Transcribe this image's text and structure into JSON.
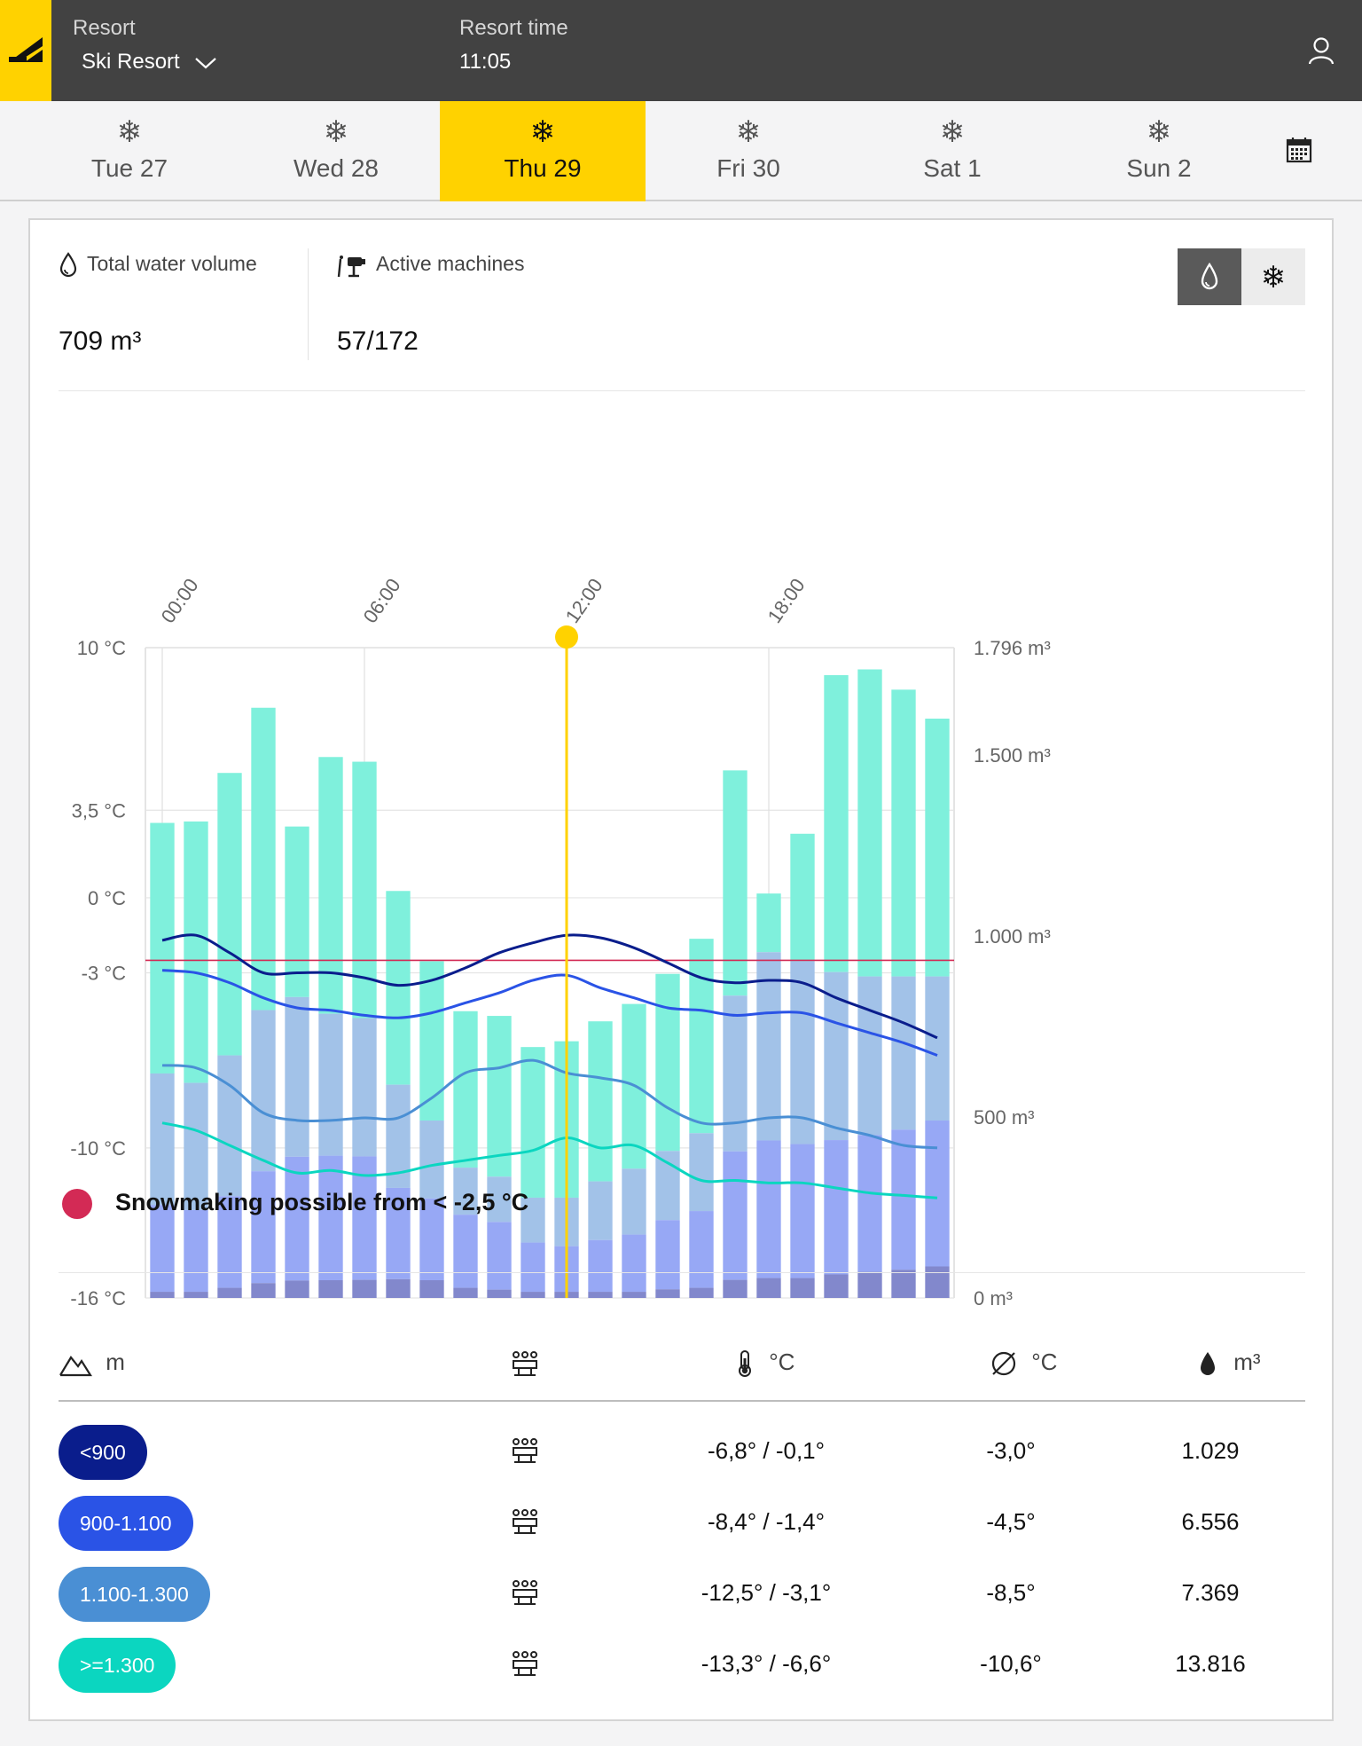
{
  "header": {
    "resort_label": "Resort",
    "resort_value": "Ski Resort",
    "time_label": "Resort time",
    "time_value": "11:05"
  },
  "days": [
    {
      "label": "Tue 27",
      "active": false
    },
    {
      "label": "Wed 28",
      "active": false
    },
    {
      "label": "Thu 29",
      "active": true
    },
    {
      "label": "Fri 30",
      "active": false
    },
    {
      "label": "Sat 1",
      "active": false
    },
    {
      "label": "Sun 2",
      "active": false
    }
  ],
  "stats": {
    "water_label": "Total water volume",
    "water_value": "709 m³",
    "machines_label": "Active machines",
    "machines_value": "57/172"
  },
  "toggle": {
    "active": "water-drop-icon",
    "inactive": "snowflake-icon"
  },
  "colors": {
    "accent": "#ffd200",
    "threshold": "#d32a55",
    "bar_top": "#7ff0dc",
    "bar_mid": "#a2c2e8",
    "bar_low": "#97a8f5",
    "bar_base": "#8288cc",
    "band_lt900": "#0a1d8c",
    "band_900_1100": "#2a53e6",
    "band_1100_1300": "#4a8fd4",
    "band_ge1300": "#0bd6c0"
  },
  "chart_data": {
    "type": "bar",
    "x_ticks": [
      "00:00",
      "06:00",
      "12:00",
      "18:00"
    ],
    "left_axis": {
      "ticks": [
        "10 °C",
        "3,5 °C",
        "0 °C",
        "-3 °C",
        "-10 °C",
        "-16 °C"
      ],
      "values": [
        10,
        3.5,
        0,
        -3,
        -10,
        -16
      ],
      "range": [
        -16,
        10
      ]
    },
    "right_axis": {
      "ticks": [
        "1.796 m³",
        "1.500 m³",
        "1.000 m³",
        "500 m³",
        "0 m³"
      ],
      "values": [
        1796,
        1500,
        1000,
        500,
        0
      ],
      "range": [
        0,
        1796
      ]
    },
    "current_hour_index": 12,
    "threshold_celsius": -2.5,
    "bars_m3": {
      "total": [
        1312,
        1316,
        1450,
        1630,
        1302,
        1494,
        1481,
        1124,
        930,
        792,
        779,
        693,
        709,
        764,
        812,
        895,
        992,
        1457,
        1117,
        1282,
        1720,
        1736,
        1680,
        1600
      ],
      "mid": [
        620,
        594,
        670,
        795,
        831,
        785,
        773,
        589,
        490,
        360,
        335,
        277,
        277,
        322,
        357,
        406,
        455,
        835,
        955,
        930,
        900,
        888,
        888,
        888
      ],
      "low": [
        257,
        243,
        281,
        350,
        390,
        393,
        391,
        304,
        275,
        230,
        210,
        153,
        143,
        160,
        175,
        215,
        240,
        405,
        435,
        425,
        436,
        450,
        465,
        490
      ],
      "base": [
        17,
        17,
        28,
        41,
        48,
        49,
        50,
        52,
        49,
        28,
        23,
        17,
        17,
        17,
        17,
        24,
        28,
        50,
        55,
        55,
        65,
        72,
        78,
        87
      ]
    },
    "series_celsius": [
      {
        "band": "<900",
        "values": [
          -1.7,
          -1.5,
          -2.2,
          -3.0,
          -3.0,
          -3.0,
          -3.2,
          -3.5,
          -3.3,
          -2.8,
          -2.2,
          -1.8,
          -1.5,
          -1.6,
          -2.0,
          -2.6,
          -3.2,
          -3.4,
          -3.3,
          -3.4,
          -4.0,
          -4.5,
          -5.0,
          -5.6
        ]
      },
      {
        "band": "900-1.100",
        "values": [
          -2.9,
          -3.0,
          -3.4,
          -4.0,
          -4.4,
          -4.5,
          -4.7,
          -4.8,
          -4.6,
          -4.2,
          -3.8,
          -3.3,
          -3.1,
          -3.6,
          -4.0,
          -4.4,
          -4.5,
          -4.7,
          -4.6,
          -4.6,
          -5.0,
          -5.4,
          -5.8,
          -6.3
        ]
      },
      {
        "band": "1.100-1.300",
        "values": [
          -6.7,
          -6.8,
          -7.5,
          -8.6,
          -8.9,
          -8.9,
          -8.8,
          -8.8,
          -8.0,
          -7.0,
          -6.8,
          -6.5,
          -7.0,
          -7.2,
          -7.5,
          -8.4,
          -9.0,
          -9.0,
          -8.8,
          -8.8,
          -9.2,
          -9.5,
          -9.9,
          -10.0
        ]
      },
      {
        "band": ">=1.300",
        "values": [
          -9.0,
          -9.3,
          -9.9,
          -10.5,
          -11.0,
          -10.9,
          -11.1,
          -11.0,
          -10.7,
          -10.5,
          -10.3,
          -10.1,
          -9.6,
          -10.0,
          -9.9,
          -10.6,
          -11.3,
          -11.3,
          -11.4,
          -11.4,
          -11.6,
          -11.8,
          -11.9,
          -12.0
        ]
      }
    ]
  },
  "legend": {
    "text": "Snowmaking possible from < -2,5 °C"
  },
  "table": {
    "headers": {
      "altitude": "m",
      "temp": "°C",
      "avg": "°C",
      "water": "m³"
    },
    "rows": [
      {
        "band": "<900",
        "color": "#0a1d8c",
        "range": "-6,8° / -0,1°",
        "avg": "-3,0°",
        "water": "1.029"
      },
      {
        "band": "900-1.100",
        "color": "#2a53e6",
        "range": "-8,4° / -1,4°",
        "avg": "-4,5°",
        "water": "6.556"
      },
      {
        "band": "1.100-1.300",
        "color": "#4a8fd4",
        "range": "-12,5° / -3,1°",
        "avg": "-8,5°",
        "water": "7.369"
      },
      {
        "band": ">=1.300",
        "color": "#0bd6c0",
        "range": "-13,3° / -6,6°",
        "avg": "-10,6°",
        "water": "13.816"
      }
    ]
  }
}
